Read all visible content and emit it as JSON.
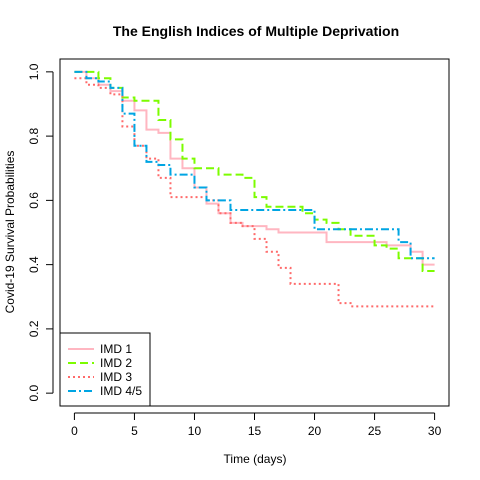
{
  "chart_data": {
    "type": "line",
    "title": "The English Indices of Multiple Deprivation",
    "xlabel": "Time (days)",
    "ylabel": "Covid-19 Survival Probabilities",
    "xlim": [
      -1.2,
      31.2
    ],
    "ylim": [
      -0.04,
      1.04
    ],
    "xticks": [
      0,
      5,
      10,
      15,
      20,
      25,
      30
    ],
    "yticks": [
      "0.0",
      "0.2",
      "0.4",
      "0.6",
      "0.8",
      "1.0"
    ],
    "legend_position": "bottom-left",
    "series": [
      {
        "name": "IMD 1",
        "color": "#FFB6C1",
        "dash": "solid",
        "x": [
          0,
          1,
          2,
          3,
          4,
          5,
          6,
          7,
          8,
          9,
          10,
          11,
          12,
          13,
          14,
          15,
          16,
          17,
          18,
          19,
          20,
          21,
          22,
          23,
          24,
          25,
          26,
          27,
          28,
          29,
          30
        ],
        "y": [
          1.0,
          0.98,
          0.96,
          0.94,
          0.91,
          0.88,
          0.82,
          0.81,
          0.73,
          0.7,
          0.64,
          0.59,
          0.56,
          0.53,
          0.52,
          0.52,
          0.51,
          0.5,
          0.5,
          0.5,
          0.5,
          0.47,
          0.47,
          0.47,
          0.47,
          0.47,
          0.46,
          0.46,
          0.44,
          0.4,
          0.4
        ]
      },
      {
        "name": "IMD 2",
        "color": "#7CFC00",
        "dash": "dashed",
        "x": [
          0,
          1,
          2,
          3,
          4,
          5,
          6,
          7,
          8,
          9,
          10,
          11,
          12,
          13,
          14,
          15,
          16,
          17,
          18,
          19,
          20,
          21,
          22,
          23,
          24,
          25,
          26,
          27,
          28,
          29,
          30
        ],
        "y": [
          1.0,
          1.0,
          0.98,
          0.95,
          0.92,
          0.91,
          0.91,
          0.85,
          0.79,
          0.73,
          0.7,
          0.7,
          0.68,
          0.68,
          0.67,
          0.61,
          0.58,
          0.58,
          0.58,
          0.56,
          0.54,
          0.53,
          0.51,
          0.49,
          0.49,
          0.46,
          0.45,
          0.42,
          0.42,
          0.38,
          0.38
        ]
      },
      {
        "name": "IMD 3",
        "color": "#FF6A6A",
        "dash": "dotted",
        "x": [
          0,
          1,
          2,
          3,
          4,
          5,
          6,
          7,
          8,
          9,
          10,
          11,
          12,
          13,
          14,
          15,
          16,
          17,
          18,
          19,
          20,
          21,
          22,
          23,
          24,
          25,
          26,
          27,
          28,
          29,
          30
        ],
        "y": [
          0.98,
          0.96,
          0.95,
          0.93,
          0.83,
          0.77,
          0.73,
          0.67,
          0.61,
          0.61,
          0.61,
          0.6,
          0.56,
          0.53,
          0.52,
          0.48,
          0.44,
          0.39,
          0.34,
          0.34,
          0.34,
          0.34,
          0.28,
          0.27,
          0.27,
          0.27,
          0.27,
          0.27,
          0.27,
          0.27,
          0.27
        ]
      },
      {
        "name": "IMD 4/5",
        "color": "#00A5E3",
        "dash": "dashdot",
        "x": [
          0,
          1,
          2,
          3,
          4,
          5,
          6,
          7,
          8,
          9,
          10,
          11,
          12,
          13,
          14,
          15,
          16,
          17,
          18,
          19,
          20,
          21,
          22,
          23,
          24,
          25,
          26,
          27,
          28,
          29,
          30
        ],
        "y": [
          1.0,
          0.98,
          0.97,
          0.95,
          0.87,
          0.77,
          0.72,
          0.71,
          0.68,
          0.68,
          0.64,
          0.6,
          0.6,
          0.57,
          0.57,
          0.57,
          0.57,
          0.57,
          0.57,
          0.57,
          0.51,
          0.51,
          0.51,
          0.51,
          0.51,
          0.51,
          0.51,
          0.47,
          0.42,
          0.42,
          0.42
        ]
      }
    ]
  }
}
